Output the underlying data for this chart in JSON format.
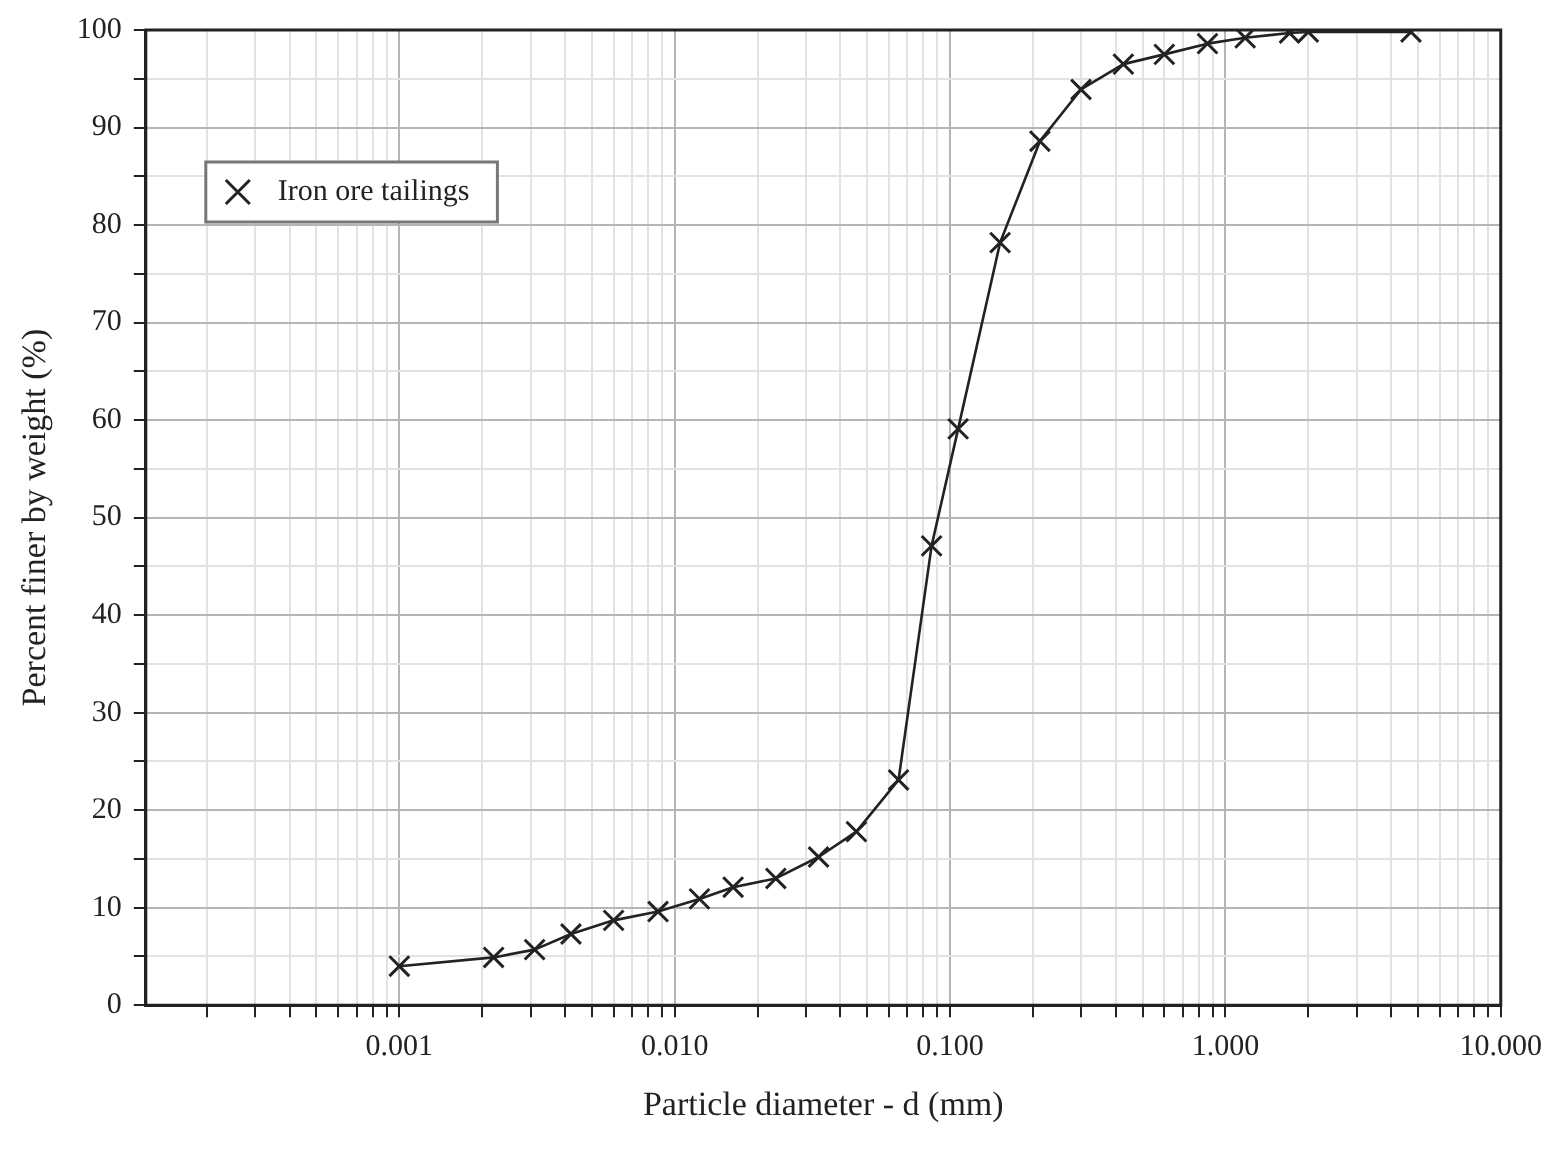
{
  "chart_data": {
    "type": "line",
    "xlabel": "Particle diameter - d (mm)",
    "ylabel": "Percent finer by weight (%)",
    "log": "x",
    "xlim": [
      0.00012,
      10
    ],
    "xticks": [
      {
        "value": 0.0002,
        "label": null
      },
      {
        "value": 0.0003,
        "label": null
      },
      {
        "value": 0.0004,
        "label": null
      },
      {
        "value": 0.0005,
        "label": null
      },
      {
        "value": 0.0006,
        "label": null
      },
      {
        "value": 0.0007,
        "label": null
      },
      {
        "value": 0.0008,
        "label": null
      },
      {
        "value": 0.0009,
        "label": null
      },
      {
        "value": 0.001,
        "label": "0.001"
      },
      {
        "value": 0.002,
        "label": null
      },
      {
        "value": 0.003,
        "label": null
      },
      {
        "value": 0.004,
        "label": null
      },
      {
        "value": 0.005,
        "label": null
      },
      {
        "value": 0.006,
        "label": null
      },
      {
        "value": 0.007,
        "label": null
      },
      {
        "value": 0.008,
        "label": null
      },
      {
        "value": 0.009,
        "label": null
      },
      {
        "value": 0.01,
        "label": "0.010"
      },
      {
        "value": 0.02,
        "label": null
      },
      {
        "value": 0.03,
        "label": null
      },
      {
        "value": 0.04,
        "label": null
      },
      {
        "value": 0.05,
        "label": null
      },
      {
        "value": 0.06,
        "label": null
      },
      {
        "value": 0.07,
        "label": null
      },
      {
        "value": 0.08,
        "label": null
      },
      {
        "value": 0.09,
        "label": null
      },
      {
        "value": 0.1,
        "label": "0.100"
      },
      {
        "value": 0.2,
        "label": null
      },
      {
        "value": 0.3,
        "label": null
      },
      {
        "value": 0.4,
        "label": null
      },
      {
        "value": 0.5,
        "label": null
      },
      {
        "value": 0.6,
        "label": null
      },
      {
        "value": 0.7,
        "label": null
      },
      {
        "value": 0.8,
        "label": null
      },
      {
        "value": 0.9,
        "label": null
      },
      {
        "value": 1,
        "label": "1.000"
      },
      {
        "value": 2,
        "label": null
      },
      {
        "value": 3,
        "label": null
      },
      {
        "value": 4,
        "label": null
      },
      {
        "value": 5,
        "label": null
      },
      {
        "value": 6,
        "label": null
      },
      {
        "value": 7,
        "label": null
      },
      {
        "value": 8,
        "label": null
      },
      {
        "value": 9,
        "label": null
      },
      {
        "value": 10,
        "label": "10.000"
      }
    ],
    "ylim": [
      0,
      100
    ],
    "yticks": [
      0,
      {
        "value": 5,
        "label": null
      },
      10,
      {
        "value": 15,
        "label": null
      },
      20,
      {
        "value": 25,
        "label": null
      },
      30,
      {
        "value": 35,
        "label": null
      },
      40,
      {
        "value": 45,
        "label": null
      },
      50,
      {
        "value": 55,
        "label": null
      },
      60,
      {
        "value": 65,
        "label": null
      },
      70,
      {
        "value": 75,
        "label": null
      },
      80,
      {
        "value": 85,
        "label": null
      },
      90,
      {
        "value": 95,
        "label": null
      },
      100
    ],
    "grid": true,
    "legend": "top left",
    "marker": "cross",
    "line_style": "solid",
    "series": [
      {
        "name": "Iron ore tailings",
        "color": "#222222",
        "x": [
          0.001,
          0.0022,
          0.0031,
          0.0042,
          0.006,
          0.0087,
          0.0123,
          0.0163,
          0.0233,
          0.0333,
          0.0457,
          0.065,
          0.0857,
          0.107,
          0.152,
          0.212,
          0.299,
          0.426,
          0.6,
          0.861,
          1.18,
          1.71,
          2.0,
          4.72
        ],
        "values": [
          4.0,
          4.9,
          5.7,
          7.3,
          8.7,
          9.6,
          10.9,
          12.1,
          13.0,
          15.2,
          17.8,
          23.1,
          47.1,
          59.1,
          78.2,
          88.6,
          93.9,
          96.5,
          97.5,
          98.6,
          99.2,
          99.7,
          99.8,
          99.8
        ]
      }
    ]
  }
}
